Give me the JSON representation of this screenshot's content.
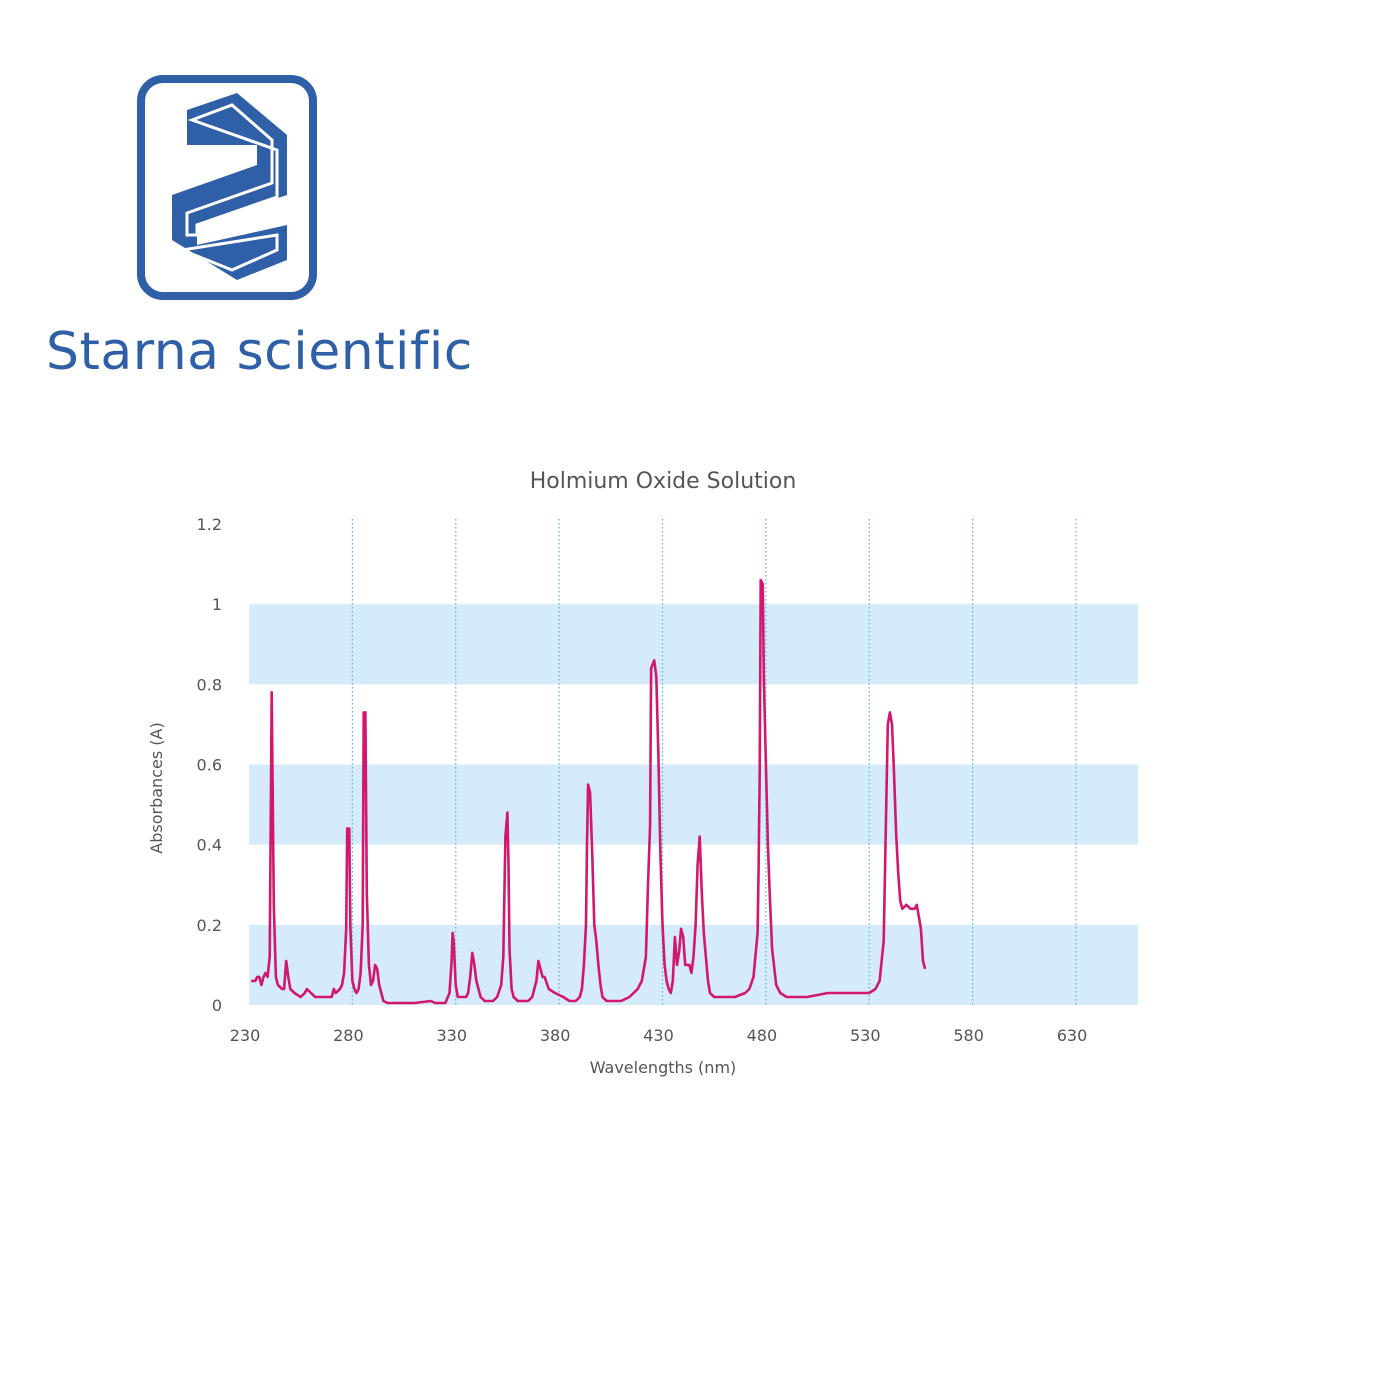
{
  "brand": {
    "name_bold": "Starna",
    "name_rest": " scientific",
    "color": "#2f5fa7",
    "logo_icon": "starna-s-logo-icon",
    "logo_letter": "S"
  },
  "colors": {
    "line": "#d1186e",
    "band": "#d6ebfa",
    "grid": "#4fb3e3",
    "text": "#555555"
  },
  "chart_data": {
    "type": "line",
    "title": "Holmium Oxide Solution",
    "xlabel": "Wavelengths (nm)",
    "ylabel": "Absorbances (A)",
    "xlim": [
      230,
      660
    ],
    "ylim": [
      0,
      1.2
    ],
    "xticks": [
      230,
      280,
      330,
      380,
      430,
      480,
      530,
      580,
      630
    ],
    "xtick_labels": [
      "230",
      "280",
      "330",
      "380",
      "430",
      "480",
      "530",
      "580",
      "630"
    ],
    "yticks": [
      0,
      0.2,
      0.4,
      0.6,
      0.8,
      1.0,
      1.2
    ],
    "ytick_labels": [
      "0",
      "0.2",
      "0.4",
      "0.6",
      "0.8",
      "1",
      "1.2"
    ],
    "vertical_gridlines": true,
    "gridline_style": "dotted",
    "horizontal_bands": [
      [
        0,
        0.2
      ],
      [
        0.4,
        0.6
      ],
      [
        0.8,
        1.0
      ]
    ],
    "series": [
      {
        "points": [
          [
            231,
            0.06
          ],
          [
            233,
            0.06
          ],
          [
            234,
            0.07
          ],
          [
            235,
            0.07
          ],
          [
            236,
            0.05
          ],
          [
            237,
            0.07
          ],
          [
            238,
            0.08
          ],
          [
            239,
            0.07
          ],
          [
            240,
            0.12
          ],
          [
            241,
            0.78
          ],
          [
            242,
            0.25
          ],
          [
            243,
            0.07
          ],
          [
            244,
            0.05
          ],
          [
            246,
            0.04
          ],
          [
            247,
            0.04
          ],
          [
            248,
            0.11
          ],
          [
            249,
            0.07
          ],
          [
            250,
            0.04
          ],
          [
            252,
            0.03
          ],
          [
            255,
            0.02
          ],
          [
            257,
            0.03
          ],
          [
            258,
            0.04
          ],
          [
            260,
            0.03
          ],
          [
            262,
            0.02
          ],
          [
            265,
            0.02
          ],
          [
            267,
            0.02
          ],
          [
            270,
            0.02
          ],
          [
            271,
            0.04
          ],
          [
            272,
            0.03
          ],
          [
            274,
            0.04
          ],
          [
            275,
            0.05
          ],
          [
            276,
            0.08
          ],
          [
            277,
            0.19
          ],
          [
            277.5,
            0.44
          ],
          [
            278.5,
            0.44
          ],
          [
            279,
            0.2
          ],
          [
            280,
            0.06
          ],
          [
            281,
            0.04
          ],
          [
            282,
            0.03
          ],
          [
            283,
            0.04
          ],
          [
            284,
            0.08
          ],
          [
            285,
            0.2
          ],
          [
            285.5,
            0.73
          ],
          [
            286.3,
            0.73
          ],
          [
            287,
            0.28
          ],
          [
            288,
            0.1
          ],
          [
            289,
            0.05
          ],
          [
            290,
            0.06
          ],
          [
            291,
            0.1
          ],
          [
            292,
            0.09
          ],
          [
            293,
            0.05
          ],
          [
            294,
            0.03
          ],
          [
            295,
            0.01
          ],
          [
            297,
            0.005
          ],
          [
            300,
            0.005
          ],
          [
            310,
            0.005
          ],
          [
            318,
            0.01
          ],
          [
            320,
            0.005
          ],
          [
            325,
            0.005
          ],
          [
            327,
            0.03
          ],
          [
            328,
            0.11
          ],
          [
            328.5,
            0.18
          ],
          [
            329,
            0.16
          ],
          [
            330,
            0.05
          ],
          [
            331,
            0.02
          ],
          [
            333,
            0.02
          ],
          [
            335,
            0.02
          ],
          [
            336,
            0.03
          ],
          [
            337,
            0.07
          ],
          [
            338,
            0.13
          ],
          [
            339,
            0.1
          ],
          [
            340,
            0.06
          ],
          [
            341,
            0.04
          ],
          [
            342,
            0.02
          ],
          [
            344,
            0.01
          ],
          [
            346,
            0.01
          ],
          [
            348,
            0.01
          ],
          [
            350,
            0.02
          ],
          [
            352,
            0.05
          ],
          [
            353,
            0.12
          ],
          [
            354,
            0.42
          ],
          [
            355,
            0.48
          ],
          [
            355.5,
            0.35
          ],
          [
            356,
            0.14
          ],
          [
            357,
            0.04
          ],
          [
            358,
            0.02
          ],
          [
            360,
            0.01
          ],
          [
            365,
            0.01
          ],
          [
            367,
            0.02
          ],
          [
            368,
            0.04
          ],
          [
            369,
            0.06
          ],
          [
            370,
            0.11
          ],
          [
            371,
            0.09
          ],
          [
            372,
            0.07
          ],
          [
            373,
            0.07
          ],
          [
            375,
            0.04
          ],
          [
            378,
            0.03
          ],
          [
            382,
            0.02
          ],
          [
            385,
            0.01
          ],
          [
            388,
            0.01
          ],
          [
            390,
            0.02
          ],
          [
            391,
            0.04
          ],
          [
            392,
            0.1
          ],
          [
            393,
            0.2
          ],
          [
            393.5,
            0.4
          ],
          [
            394,
            0.55
          ],
          [
            395,
            0.53
          ],
          [
            396,
            0.38
          ],
          [
            397,
            0.2
          ],
          [
            398,
            0.16
          ],
          [
            399,
            0.1
          ],
          [
            400,
            0.05
          ],
          [
            401,
            0.02
          ],
          [
            403,
            0.01
          ],
          [
            406,
            0.01
          ],
          [
            410,
            0.01
          ],
          [
            414,
            0.02
          ],
          [
            416,
            0.03
          ],
          [
            418,
            0.04
          ],
          [
            420,
            0.06
          ],
          [
            422,
            0.12
          ],
          [
            423,
            0.3
          ],
          [
            424,
            0.45
          ],
          [
            424.5,
            0.84
          ],
          [
            426,
            0.86
          ],
          [
            427,
            0.82
          ],
          [
            428,
            0.62
          ],
          [
            429,
            0.38
          ],
          [
            430,
            0.2
          ],
          [
            431,
            0.1
          ],
          [
            432,
            0.06
          ],
          [
            433,
            0.04
          ],
          [
            434,
            0.03
          ],
          [
            435,
            0.06
          ],
          [
            436,
            0.17
          ],
          [
            437,
            0.1
          ],
          [
            438,
            0.13
          ],
          [
            439,
            0.19
          ],
          [
            440,
            0.17
          ],
          [
            441,
            0.1
          ],
          [
            442,
            0.1
          ],
          [
            443,
            0.1
          ],
          [
            444,
            0.08
          ],
          [
            445,
            0.12
          ],
          [
            446,
            0.2
          ],
          [
            447,
            0.35
          ],
          [
            448,
            0.42
          ],
          [
            449,
            0.28
          ],
          [
            450,
            0.18
          ],
          [
            451,
            0.12
          ],
          [
            452,
            0.06
          ],
          [
            453,
            0.03
          ],
          [
            455,
            0.02
          ],
          [
            460,
            0.02
          ],
          [
            465,
            0.02
          ],
          [
            470,
            0.03
          ],
          [
            472,
            0.04
          ],
          [
            474,
            0.07
          ],
          [
            476,
            0.18
          ],
          [
            476.5,
            0.34
          ],
          [
            477,
            0.58
          ],
          [
            477.5,
            1.06
          ],
          [
            478.5,
            1.05
          ],
          [
            479,
            0.82
          ],
          [
            480,
            0.6
          ],
          [
            481,
            0.4
          ],
          [
            482,
            0.26
          ],
          [
            483,
            0.14
          ],
          [
            485,
            0.05
          ],
          [
            487,
            0.03
          ],
          [
            490,
            0.02
          ],
          [
            500,
            0.02
          ],
          [
            510,
            0.03
          ],
          [
            520,
            0.03
          ],
          [
            530,
            0.03
          ],
          [
            533,
            0.04
          ],
          [
            535,
            0.06
          ],
          [
            537,
            0.16
          ],
          [
            538,
            0.44
          ],
          [
            539,
            0.7
          ],
          [
            540,
            0.73
          ],
          [
            541,
            0.7
          ],
          [
            542,
            0.58
          ],
          [
            543,
            0.43
          ],
          [
            544,
            0.33
          ],
          [
            545,
            0.26
          ],
          [
            546,
            0.24
          ],
          [
            548,
            0.25
          ],
          [
            550,
            0.24
          ],
          [
            551,
            0.24
          ],
          [
            552,
            0.24
          ],
          [
            553,
            0.25
          ],
          [
            555,
            0.19
          ],
          [
            556,
            0.11
          ],
          [
            557,
            0.09
          ]
        ]
      }
    ]
  }
}
